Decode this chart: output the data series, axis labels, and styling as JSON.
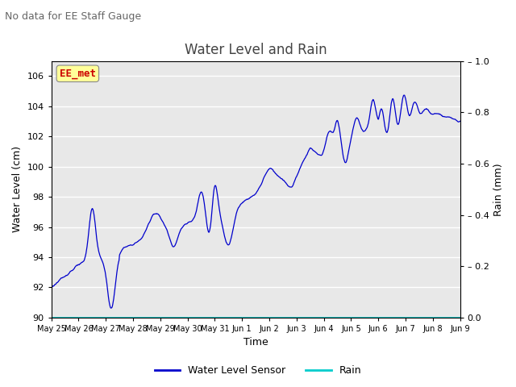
{
  "title": "Water Level and Rain",
  "subtitle": "No data for EE Staff Gauge",
  "xlabel": "Time",
  "ylabel_left": "Water Level (cm)",
  "ylabel_right": "Rain (mm)",
  "ylim_left": [
    90,
    107
  ],
  "ylim_right": [
    0.0,
    1.0
  ],
  "yticks_left": [
    90,
    92,
    94,
    96,
    98,
    100,
    102,
    104,
    106
  ],
  "yticks_right": [
    0.0,
    0.2,
    0.4,
    0.6,
    0.8,
    1.0
  ],
  "xtick_labels": [
    "May 25",
    "May 26",
    "May 27",
    "May 28",
    "May 29",
    "May 30",
    "May 31",
    "Jun 1",
    "Jun 2",
    "Jun 3",
    "Jun 4",
    "Jun 5",
    "Jun 6",
    "Jun 7",
    "Jun 8",
    "Jun 9"
  ],
  "line_color": "#0000cc",
  "rain_color": "#00cccc",
  "background_color": "#e8e8e8",
  "annotation_text": "EE_met",
  "annotation_color": "#cc0000",
  "annotation_bg": "#ffff99",
  "legend_water": "Water Level Sensor",
  "legend_rain": "Rain",
  "title_fontsize": 12,
  "subtitle_fontsize": 9,
  "axis_fontsize": 9,
  "tick_fontsize": 8
}
